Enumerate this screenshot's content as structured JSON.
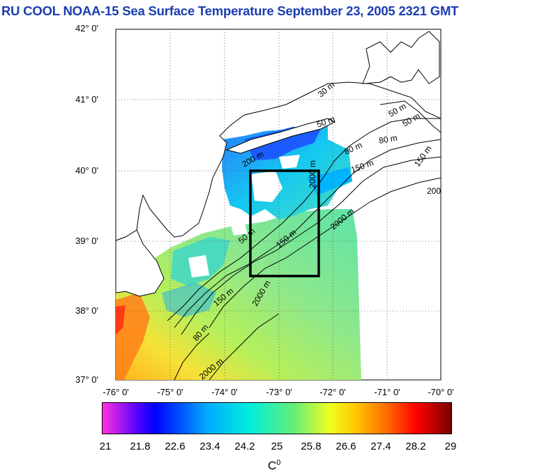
{
  "title": "RU COOL  NOAA-15 Sea Surface Temperature September 23, 2005 2321 GMT",
  "latitude_labels": [
    "42° 0'",
    "41° 0'",
    "40° 0'",
    "39° 0'",
    "38° 0'",
    "37° 0'"
  ],
  "longitude_labels": [
    "-76° 0'",
    "-75° 0'",
    "-74° 0'",
    "-73° 0'",
    "-72° 0'",
    "-71° 0'",
    "-70° 0'"
  ],
  "bathymetry_labels": [
    "50 m",
    "50 m",
    "50 m",
    "80 m",
    "80 m",
    "150 m",
    "150 m",
    "200",
    "2000 m",
    "2000 m",
    "2000 m",
    "150 m",
    "50 m",
    "80 m",
    "30 m",
    "150 m",
    "200 m",
    "2000 m"
  ],
  "study_box": {
    "lon_min": -73.5,
    "lon_max": -72.25,
    "lat_min": 38.5,
    "lat_max": 40.0
  },
  "colorbar": {
    "tick_labels": [
      "21",
      "21.8",
      "22.6",
      "23.4",
      "24.2",
      "25",
      "25.8",
      "26.6",
      "27.4",
      "28.2",
      "29"
    ],
    "unit_base": "C",
    "unit_sup": "0",
    "min": 21,
    "max": 29
  },
  "colors": {
    "title": "#1a3db0",
    "land": "#ffffff",
    "box": "#000000"
  }
}
